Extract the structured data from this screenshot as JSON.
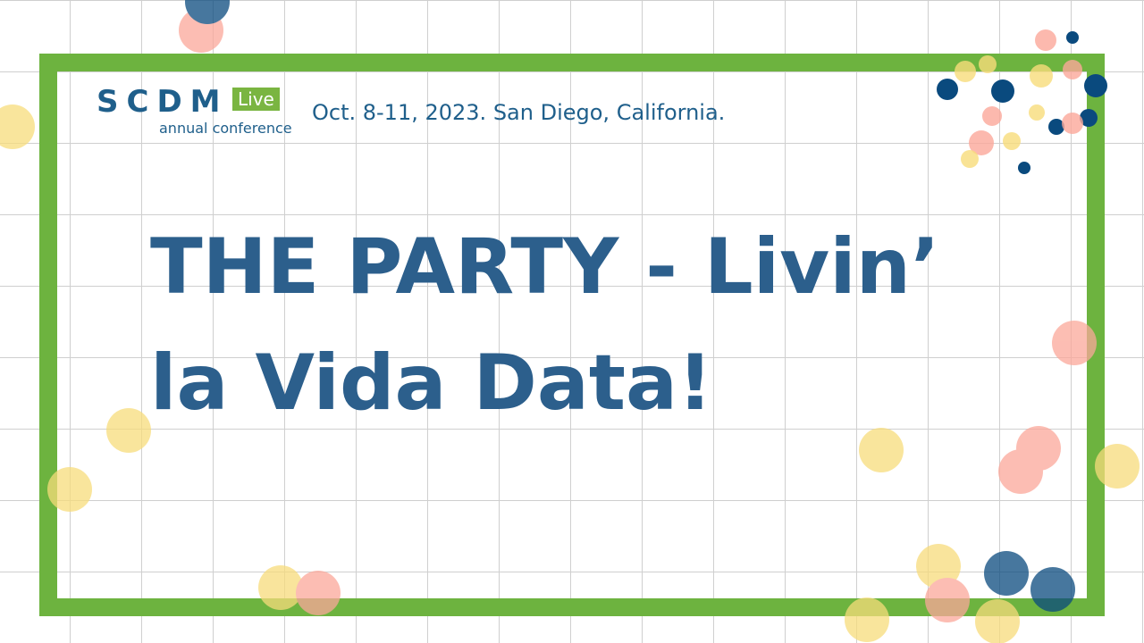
{
  "header": {
    "logo": "SCDM",
    "badge": "Live",
    "tagline": "annual conference",
    "event": "Oct. 8-11, 2023. San Diego, California."
  },
  "title": {
    "lines": [
      "THE PARTY - Livin’",
      "la Vida Data!"
    ]
  }
}
